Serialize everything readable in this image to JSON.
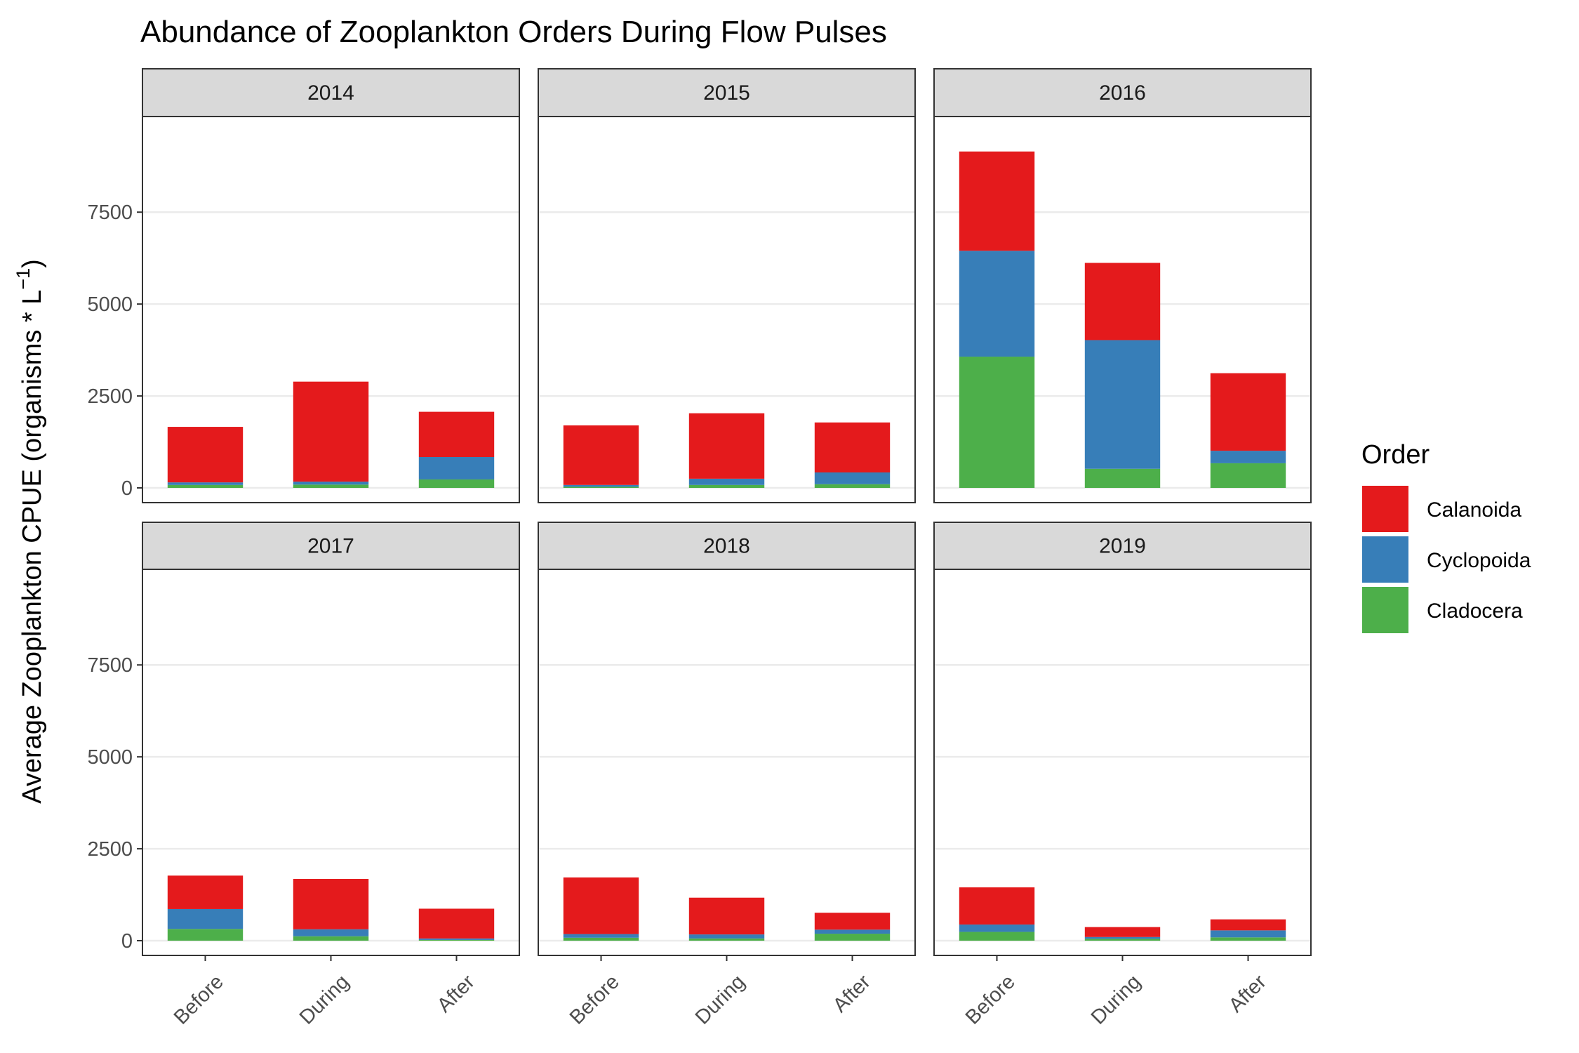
{
  "chart_data": {
    "type": "bar",
    "stacked": true,
    "title": "Abundance of Zooplankton Orders During Flow Pulses",
    "ylabel_main": "Average Zooplankton CPUE  (organisms * L",
    "ylabel_sup": "−1",
    "ylabel_close": ")",
    "xlabel": "",
    "ylim": [
      0,
      9700
    ],
    "yticks": [
      0,
      2500,
      5000,
      7500
    ],
    "ytick_labels": [
      "0",
      "2500",
      "5000",
      "7500"
    ],
    "grid": "horizontal major",
    "categories": [
      "Before",
      "During",
      "After"
    ],
    "legend": {
      "title": "Order",
      "position": "right",
      "entries": [
        "Calanoida",
        "Cyclopoida",
        "Cladocera"
      ]
    },
    "colors": {
      "Calanoida": "#E41A1C",
      "Cyclopoida": "#377EB8",
      "Cladocera": "#4DAF4A",
      "strip_fill": "#D9D9D9",
      "grid": "#EBEBEB",
      "panel_border": "#333333"
    },
    "panels": [
      {
        "label": "2014",
        "series": [
          {
            "name": "Cladocera",
            "values": [
              80,
              90,
              230
            ]
          },
          {
            "name": "Cyclopoida",
            "values": [
              70,
              80,
              610
            ]
          },
          {
            "name": "Calanoida",
            "values": [
              1510,
              2720,
              1230
            ]
          }
        ]
      },
      {
        "label": "2015",
        "series": [
          {
            "name": "Cladocera",
            "values": [
              30,
              80,
              100
            ]
          },
          {
            "name": "Cyclopoida",
            "values": [
              50,
              170,
              320
            ]
          },
          {
            "name": "Calanoida",
            "values": [
              1620,
              1780,
              1360
            ]
          }
        ]
      },
      {
        "label": "2016",
        "series": [
          {
            "name": "Cladocera",
            "values": [
              3570,
              520,
              670
            ]
          },
          {
            "name": "Cyclopoida",
            "values": [
              2880,
              3500,
              340
            ]
          },
          {
            "name": "Calanoida",
            "values": [
              2700,
              2100,
              2110
            ]
          }
        ]
      },
      {
        "label": "2017",
        "series": [
          {
            "name": "Cladocera",
            "values": [
              320,
              120,
              20
            ]
          },
          {
            "name": "Cyclopoida",
            "values": [
              540,
              190,
              40
            ]
          },
          {
            "name": "Calanoida",
            "values": [
              910,
              1370,
              810
            ]
          }
        ]
      },
      {
        "label": "2018",
        "series": [
          {
            "name": "Cladocera",
            "values": [
              80,
              60,
              190
            ]
          },
          {
            "name": "Cyclopoida",
            "values": [
              100,
              110,
              110
            ]
          },
          {
            "name": "Calanoida",
            "values": [
              1540,
              1000,
              460
            ]
          }
        ]
      },
      {
        "label": "2019",
        "series": [
          {
            "name": "Cladocera",
            "values": [
              240,
              50,
              90
            ]
          },
          {
            "name": "Cyclopoida",
            "values": [
              200,
              50,
              190
            ]
          },
          {
            "name": "Calanoida",
            "values": [
              1010,
              270,
              300
            ]
          }
        ]
      }
    ]
  }
}
